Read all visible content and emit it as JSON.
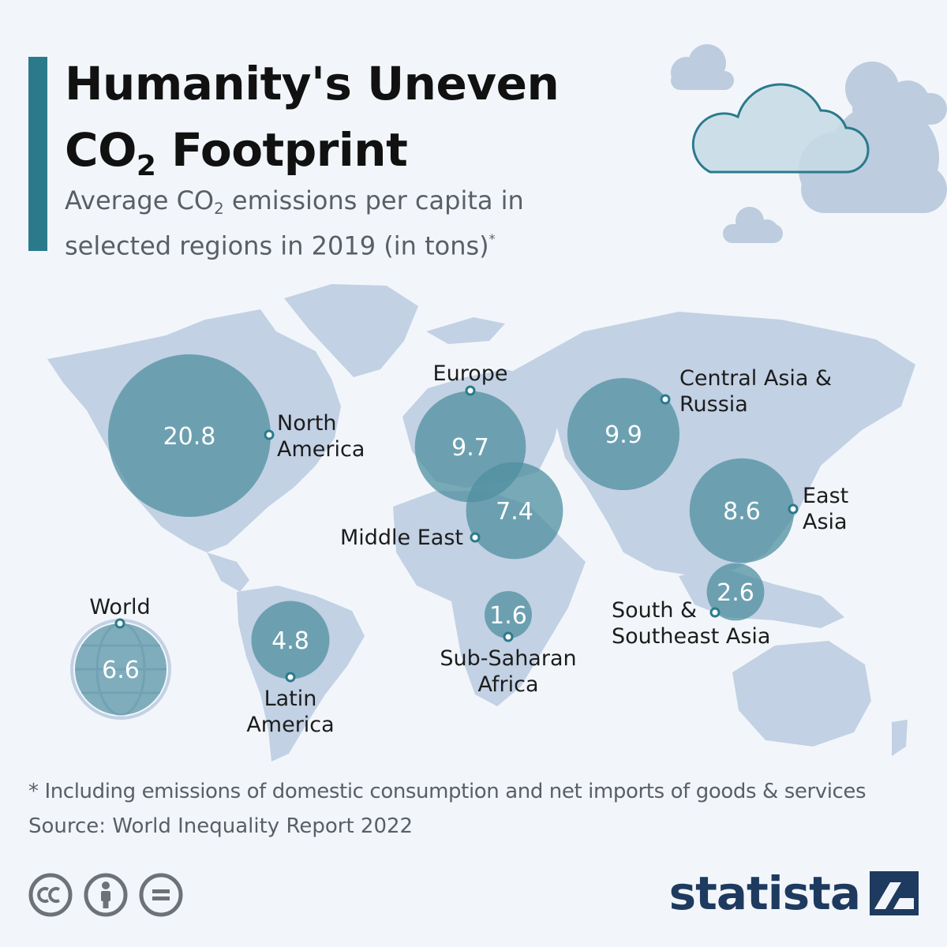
{
  "header": {
    "title_line1": "Humanity's Uneven",
    "title_line2_prefix": "CO",
    "title_line2_sub": "2",
    "title_line2_suffix": " Footprint",
    "subtitle_prefix": "Average CO",
    "subtitle_sub": "2",
    "subtitle_suffix": " emissions per capita in",
    "subtitle_line2": "selected regions in 2019 (in tons)",
    "subtitle_mark": "*"
  },
  "colors": {
    "background": "#f2f6fa",
    "accent": "#2a7a8c",
    "map": "#c2d1e4",
    "bubble": "#4f8f9f",
    "cloud": "#b8c8dc",
    "brand": "#1e3a5f"
  },
  "chart_data": {
    "type": "bubble-map",
    "unit": "tons per capita",
    "year": 2019,
    "series": [
      {
        "region": "North America",
        "value": 20.8
      },
      {
        "region": "Europe",
        "value": 9.7
      },
      {
        "region": "Central Asia & Russia",
        "value": 9.9
      },
      {
        "region": "Middle East",
        "value": 7.4
      },
      {
        "region": "East Asia",
        "value": 8.6
      },
      {
        "region": "South & Southeast Asia",
        "value": 2.6
      },
      {
        "region": "Sub-Saharan Africa",
        "value": 1.6
      },
      {
        "region": "Latin America",
        "value": 4.8
      },
      {
        "region": "World",
        "value": 6.6
      }
    ]
  },
  "footer": {
    "footnote": "* Including emissions of domestic consumption and net imports of goods & services",
    "source": "Source: World Inequality Report 2022",
    "brand": "statista"
  },
  "icons": {
    "license": [
      "cc-icon",
      "attribution-icon",
      "no-derivatives-icon"
    ],
    "brand": "statista-logo-icon"
  }
}
